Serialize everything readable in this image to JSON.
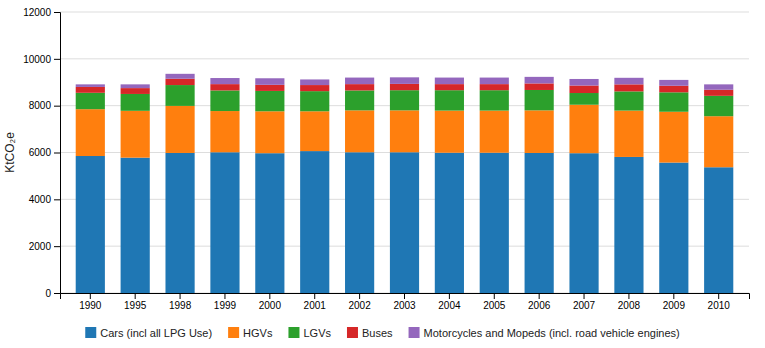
{
  "chart_data": {
    "type": "bar",
    "stacked": true,
    "categories": [
      "1990",
      "1995",
      "1998",
      "1999",
      "2000",
      "2001",
      "2002",
      "2003",
      "2004",
      "2005",
      "2006",
      "2007",
      "2008",
      "2009",
      "2010"
    ],
    "series": [
      {
        "name": "Cars (incl all LPG Use)",
        "values": [
          5850,
          5780,
          5980,
          6010,
          5970,
          6060,
          6010,
          6010,
          5990,
          5990,
          5980,
          5970,
          5810,
          5570,
          5370
        ]
      },
      {
        "name": "HGVs",
        "values": [
          2000,
          2000,
          2010,
          1760,
          1790,
          1700,
          1790,
          1790,
          1800,
          1800,
          1820,
          2070,
          1980,
          2170,
          2180
        ]
      },
      {
        "name": "LGVs",
        "values": [
          700,
          720,
          890,
          880,
          870,
          860,
          850,
          860,
          870,
          870,
          870,
          500,
          820,
          830,
          870
        ]
      },
      {
        "name": "Buses",
        "values": [
          250,
          250,
          270,
          270,
          260,
          260,
          270,
          270,
          260,
          260,
          280,
          320,
          300,
          280,
          260
        ]
      },
      {
        "name": "Motorcycles and Mopeds (incl. road vehicle engines)",
        "values": [
          110,
          160,
          210,
          260,
          280,
          240,
          280,
          280,
          280,
          280,
          280,
          280,
          280,
          250,
          230
        ]
      }
    ],
    "ylabel": "KtCO₂e",
    "ylim": [
      0,
      12000
    ],
    "yticks": [
      0,
      2000,
      4000,
      6000,
      8000,
      10000,
      12000
    ],
    "grid": true,
    "legend": "bottom"
  }
}
